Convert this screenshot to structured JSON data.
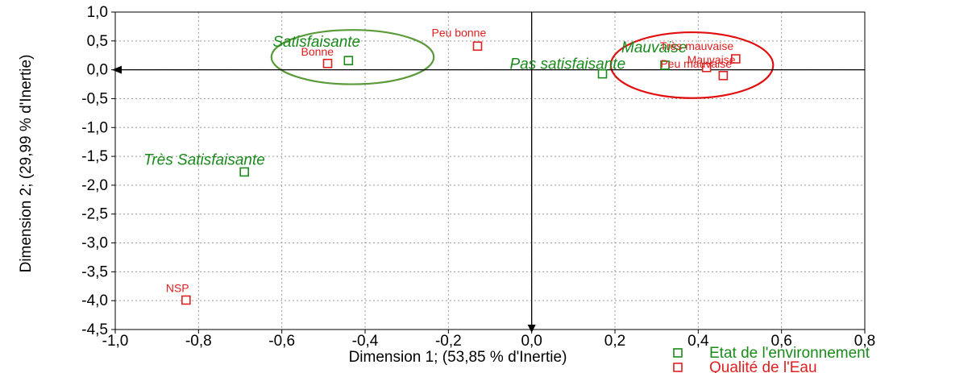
{
  "chart_data": {
    "type": "scatter",
    "title": "",
    "xlabel": "Dimension 1; (53,85  % d'Inertie)",
    "ylabel": "Dimension 2; (29,99  % d'Inertie)",
    "xlim": [
      -1.0,
      0.8
    ],
    "ylim": [
      -4.5,
      1.0
    ],
    "xticks": [
      "-1,0",
      "-0,8",
      "-0,6",
      "-0,4",
      "-0,2",
      "0,0",
      "0,2",
      "0,4",
      "0,6",
      "0,8"
    ],
    "xtick_values": [
      -1.0,
      -0.8,
      -0.6,
      -0.4,
      -0.2,
      0.0,
      0.2,
      0.4,
      0.6,
      0.8
    ],
    "yticks": [
      "1,0",
      "0,5",
      "0,0",
      "-0,5",
      "-1,0",
      "-1,5",
      "-2,0",
      "-2,5",
      "-3,0",
      "-3,5",
      "-4,0",
      "-4,5"
    ],
    "ytick_values": [
      1.0,
      0.5,
      0.0,
      -0.5,
      -1.0,
      -1.5,
      -2.0,
      -2.5,
      -3.0,
      -3.5,
      -4.0,
      -4.5
    ],
    "grid": true,
    "legend_position": "bottom-right",
    "series": [
      {
        "name": "Etat de l'environnement",
        "color": "#1a8a1a",
        "points": [
          {
            "label": "Satisfaisante",
            "x": -0.44,
            "y": 0.16
          },
          {
            "label": "Pas satisfaisante",
            "x": 0.17,
            "y": -0.07
          },
          {
            "label": "Mauvaise",
            "x": 0.32,
            "y": 0.08
          },
          {
            "label": "Très Satisfaisante",
            "x": -0.69,
            "y": -1.77
          }
        ]
      },
      {
        "name": "Qualité de l'Eau",
        "color": "#e02020",
        "points": [
          {
            "label": "Peu bonne",
            "x": -0.13,
            "y": 0.41
          },
          {
            "label": "Bonne",
            "x": -0.49,
            "y": 0.11
          },
          {
            "label": "Très mauvaise",
            "x": 0.49,
            "y": 0.19
          },
          {
            "label": "Mauvaise",
            "x": 0.42,
            "y": 0.04
          },
          {
            "label": "Peu mauvaise",
            "x": 0.46,
            "y": -0.1
          },
          {
            "label": "NSP",
            "x": -0.83,
            "y": -3.99
          }
        ]
      }
    ],
    "ellipses": [
      {
        "color": "#5a9a3a",
        "cx": -0.43,
        "cy": 0.22,
        "rx": 0.195,
        "ry": 0.47
      },
      {
        "color": "#e01010",
        "cx": 0.385,
        "cy": 0.08,
        "rx": 0.195,
        "ry": 0.57
      }
    ]
  }
}
